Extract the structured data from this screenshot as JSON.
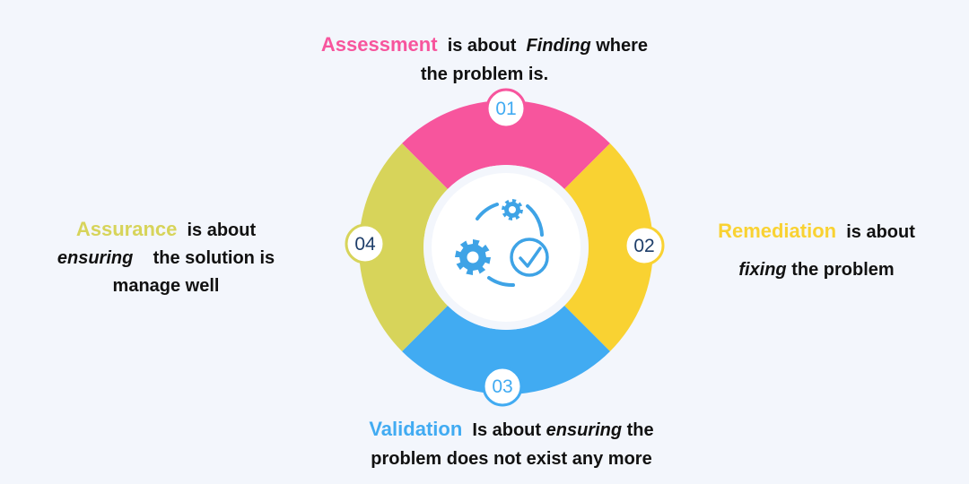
{
  "colors": {
    "background": "#f3f6fc",
    "assessment": "#f7559d",
    "remediation": "#f9d232",
    "validation": "#41abf2",
    "assurance": "#d7d45a",
    "icon": "#3ea3e6",
    "inner_circle": "#ffffff",
    "number_text_pink": "#41abf2",
    "number_text_dark": "#1e3e6a"
  },
  "icons": [
    "gear-icon",
    "gear-small-icon",
    "check-circle-icon",
    "cycle-arrows-icon"
  ],
  "steps": {
    "assessment": {
      "number": "01",
      "keyword": "Assessment",
      "line1_a": "is  about",
      "line1_em": "Finding",
      "line1_b": "where",
      "line2": "the problem is."
    },
    "remediation": {
      "number": "02",
      "keyword": "Remediation",
      "line1": "is about",
      "line2_em": "fixing",
      "line2": "the problem"
    },
    "validation": {
      "number": "03",
      "keyword": "Validation",
      "line1_a": "Is about",
      "line1_em": "ensuring",
      "line1_b": "the",
      "line2": "problem does not exist any more"
    },
    "assurance": {
      "number": "04",
      "keyword": "Assurance",
      "line1": "is about",
      "line2_em": "ensuring",
      "line2": "the solution is",
      "line3": "manage well"
    }
  }
}
